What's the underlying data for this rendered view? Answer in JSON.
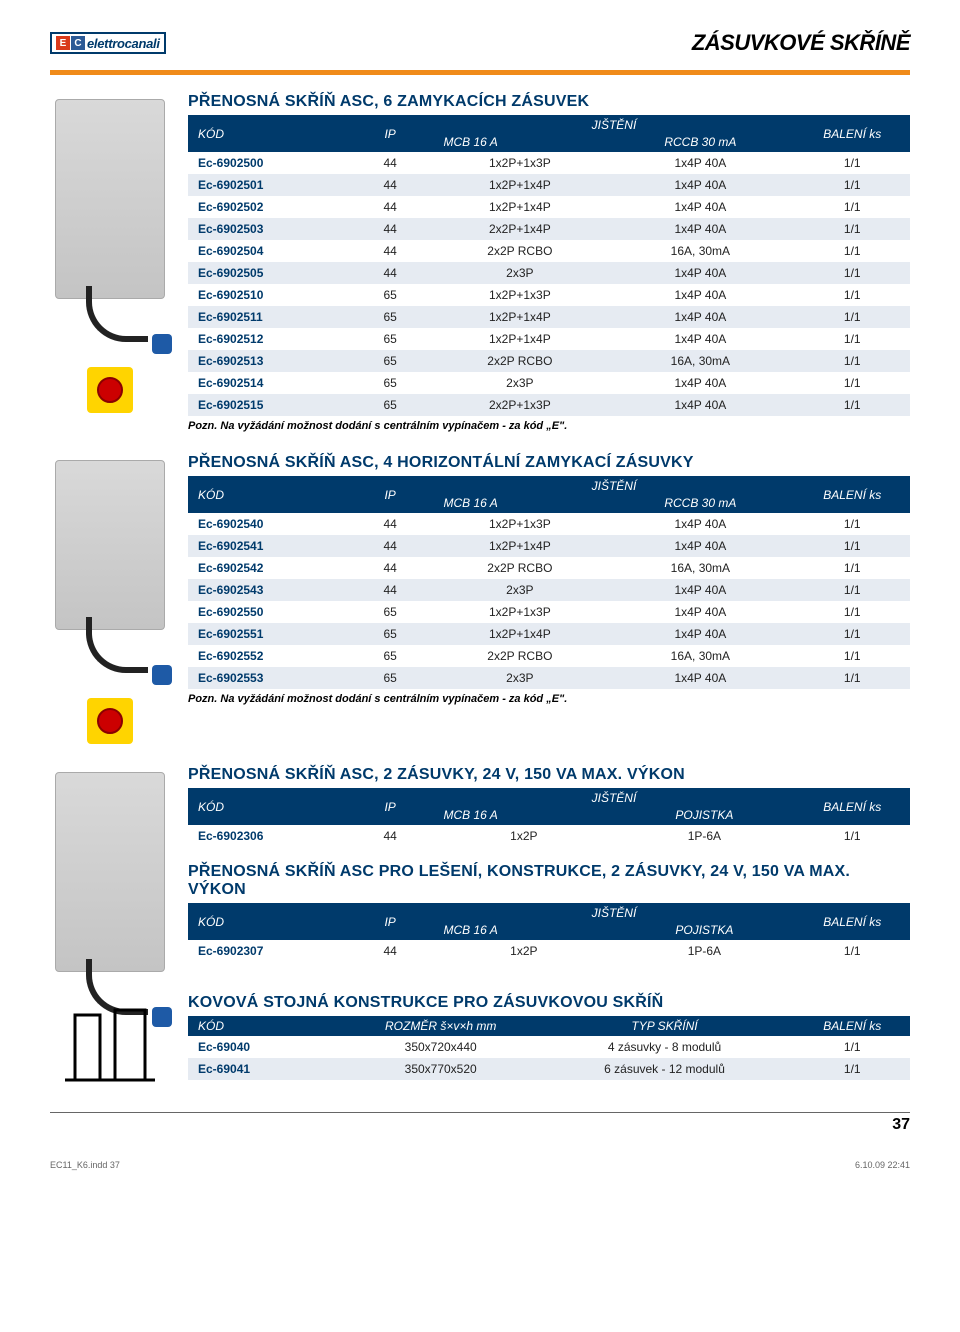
{
  "brand": {
    "name": "elettrocanali"
  },
  "page_title_pre": "Z",
  "page_title_word1": "ÁSUVKOVÉ ",
  "page_title_pre2": "S",
  "page_title_word2": "KŘÍNĚ",
  "page_number": "37",
  "footer": {
    "left": "EC11_K6.indd   37",
    "right": "6.10.09   22:41"
  },
  "note_text": "Pozn. Na vyžádání možnost dodání s centrálním vypínačem - za kód „E\".",
  "sections": [
    {
      "title": "PŘENOSNÁ SKŘÍŇ ASC, 6 ZAMYKACÍCH ZÁSUVEK",
      "header": {
        "c1": "KÓD",
        "c2": "IP",
        "c3": "JIŠTĚNÍ",
        "c3a": "MCB 16 A",
        "c3b": "RCCB 30 mA",
        "c4": "BALENÍ ks"
      },
      "rows": [
        [
          "Ec-6902500",
          "44",
          "1x2P+1x3P",
          "1x4P 40A",
          "1/1"
        ],
        [
          "Ec-6902501",
          "44",
          "1x2P+1x4P",
          "1x4P 40A",
          "1/1"
        ],
        [
          "Ec-6902502",
          "44",
          "1x2P+1x4P",
          "1x4P 40A",
          "1/1"
        ],
        [
          "Ec-6902503",
          "44",
          "2x2P+1x4P",
          "1x4P 40A",
          "1/1"
        ],
        [
          "Ec-6902504",
          "44",
          "2x2P RCBO",
          "16A, 30mA",
          "1/1"
        ],
        [
          "Ec-6902505",
          "44",
          "2x3P",
          "1x4P 40A",
          "1/1"
        ],
        [
          "Ec-6902510",
          "65",
          "1x2P+1x3P",
          "1x4P 40A",
          "1/1"
        ],
        [
          "Ec-6902511",
          "65",
          "1x2P+1x4P",
          "1x4P 40A",
          "1/1"
        ],
        [
          "Ec-6902512",
          "65",
          "1x2P+1x4P",
          "1x4P 40A",
          "1/1"
        ],
        [
          "Ec-6902513",
          "65",
          "2x2P RCBO",
          "16A, 30mA",
          "1/1"
        ],
        [
          "Ec-6902514",
          "65",
          "2x3P",
          "1x4P 40A",
          "1/1"
        ],
        [
          "Ec-6902515",
          "65",
          "2x2P+1x3P",
          "1x4P 40A",
          "1/1"
        ]
      ]
    },
    {
      "title": "PŘENOSNÁ SKŘÍŇ ASC, 4 HORIZONTÁLNÍ ZAMYKACÍ ZÁSUVKY",
      "header": {
        "c1": "KÓD",
        "c2": "IP",
        "c3": "JIŠTĚNÍ",
        "c3a": "MCB 16 A",
        "c3b": "RCCB 30 mA",
        "c4": "BALENÍ ks"
      },
      "rows": [
        [
          "Ec-6902540",
          "44",
          "1x2P+1x3P",
          "1x4P 40A",
          "1/1"
        ],
        [
          "Ec-6902541",
          "44",
          "1x2P+1x4P",
          "1x4P 40A",
          "1/1"
        ],
        [
          "Ec-6902542",
          "44",
          "2x2P RCBO",
          "16A, 30mA",
          "1/1"
        ],
        [
          "Ec-6902543",
          "44",
          "2x3P",
          "1x4P 40A",
          "1/1"
        ],
        [
          "Ec-6902550",
          "65",
          "1x2P+1x3P",
          "1x4P 40A",
          "1/1"
        ],
        [
          "Ec-6902551",
          "65",
          "1x2P+1x4P",
          "1x4P 40A",
          "1/1"
        ],
        [
          "Ec-6902552",
          "65",
          "2x2P RCBO",
          "16A, 30mA",
          "1/1"
        ],
        [
          "Ec-6902553",
          "65",
          "2x3P",
          "1x4P 40A",
          "1/1"
        ]
      ]
    },
    {
      "title": "PŘENOSNÁ SKŘÍŇ ASC, 2 ZÁSUVKY, 24 V, 150 VA MAX. VÝKON",
      "header": {
        "c1": "KÓD",
        "c2": "IP",
        "c3": "JIŠTĚNÍ",
        "c3a": "MCB 16 A",
        "c3b": "POJISTKA",
        "c4": "BALENÍ ks"
      },
      "rows": [
        [
          "Ec-6902306",
          "44",
          "1x2P",
          "1P-6A",
          "1/1"
        ]
      ]
    },
    {
      "title": "PŘENOSNÁ SKŘÍŇ ASC PRO LEŠENÍ, KONSTRUKCE, 2 ZÁSUVKY, 24 V, 150 VA MAX. VÝKON",
      "header": {
        "c1": "KÓD",
        "c2": "IP",
        "c3": "JIŠTĚNÍ",
        "c3a": "MCB 16 A",
        "c3b": "POJISTKA",
        "c4": "BALENÍ ks"
      },
      "rows": [
        [
          "Ec-6902307",
          "44",
          "1x2P",
          "1P-6A",
          "1/1"
        ]
      ]
    },
    {
      "title": "KOVOVÁ STOJNÁ KONSTRUKCE PRO ZÁSUVKOVOU SKŘÍŇ",
      "header4": {
        "c1": "KÓD",
        "c2": "ROZMĚR š×v×h mm",
        "c3": "TYP SKŘÍNÍ",
        "c4": "BALENÍ ks"
      },
      "rows4": [
        [
          "Ec-69040",
          "350x720x440",
          "4 zásuvky - 8 modulů",
          "1/1"
        ],
        [
          "Ec-69041",
          "350x770x520",
          "6 zásuvek - 12 modulů",
          "1/1"
        ]
      ]
    }
  ],
  "colors": {
    "header_bg": "#003a6b",
    "orange": "#f08b1a",
    "row_alt": "#e6ebf2",
    "code_color": "#003a6b"
  }
}
